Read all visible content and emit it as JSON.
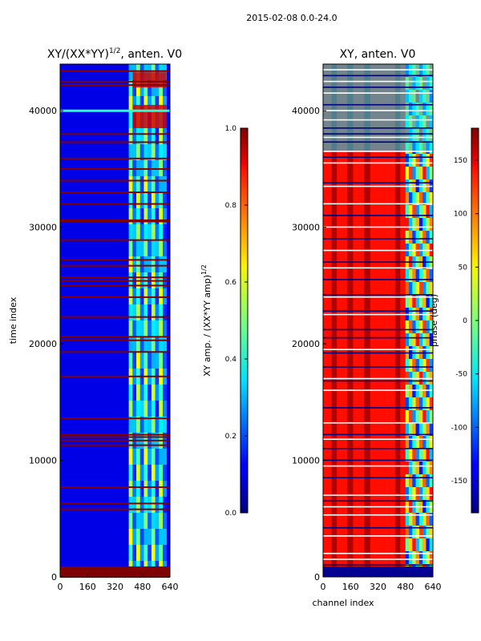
{
  "figure": {
    "suptitle": "2015-02-08 0.0-24.0"
  },
  "chart_data": [
    {
      "type": "heatmap",
      "title": "XY/(XX*YY)",
      "title_exponent": "1/2",
      "title_suffix": ", anten. V0",
      "xlabel": "",
      "ylabel": "time index",
      "xlim": [
        0,
        640
      ],
      "ylim": [
        0,
        44000
      ],
      "xticks": [
        0,
        160,
        320,
        480,
        640
      ],
      "yticks": [
        0,
        10000,
        20000,
        30000,
        40000
      ],
      "colorbar": {
        "label": "XY amp. / (XX*YY amp)",
        "label_exponent": "1/2",
        "range": [
          0.0,
          1.0
        ],
        "ticks": [
          "0.0",
          "0.2",
          "0.4",
          "0.6",
          "0.8",
          "1.0"
        ],
        "cmap": "jet"
      },
      "background_value": 0.05,
      "high_channel_band": {
        "x": [
          400,
          620
        ],
        "value": 0.35
      },
      "saturated_rows": [
        0,
        300,
        5800,
        6300,
        7700,
        11300,
        11700,
        12000,
        12200,
        13600,
        17200,
        19300,
        20300,
        20600,
        22300,
        24000,
        25000,
        25400,
        25700,
        26700,
        27200,
        28900,
        30500,
        30600,
        32000,
        33000,
        34000,
        35000,
        35900,
        37300,
        38000,
        42200,
        42500,
        43400
      ]
    },
    {
      "type": "heatmap",
      "title": "XY, anten. V0",
      "xlabel": "channel index",
      "ylabel": "",
      "xlim": [
        0,
        640
      ],
      "ylim": [
        0,
        44000
      ],
      "xticks": [
        0,
        160,
        320,
        480,
        640
      ],
      "yticks": [
        0,
        10000,
        20000,
        30000,
        40000
      ],
      "colorbar": {
        "label": "phase (deg)",
        "range": [
          -180,
          180
        ],
        "ticks": [
          "-150",
          "-100",
          "-50",
          "0",
          "50",
          "100",
          "150"
        ],
        "cmap": "jet"
      },
      "dominant_value": 130,
      "stripe_value": 170,
      "stripe_channels": [
        [
          50,
          80
        ],
        [
          140,
          175
        ],
        [
          240,
          275
        ],
        [
          420,
          450
        ]
      ],
      "high_channel_band": {
        "x": [
          480,
          640
        ],
        "value": 0
      },
      "white_rows": [
        1500,
        2000,
        3500,
        5300,
        6000,
        7000,
        9500,
        11800,
        13200,
        16000,
        17000,
        19500,
        22500,
        24000,
        26500,
        28000,
        30000,
        32000,
        33500,
        35500,
        36500,
        37700,
        39200,
        40000,
        41500,
        42500,
        43500
      ],
      "dark_rows": [
        500,
        1000,
        4200,
        6500,
        8500,
        10000,
        11000,
        12200,
        14500,
        16800,
        18000,
        19200,
        20500,
        21200,
        22800,
        24200,
        25500,
        27000,
        29000,
        31000,
        33800,
        36000,
        37300,
        38000,
        38500,
        40500,
        42000,
        43000
      ]
    }
  ]
}
